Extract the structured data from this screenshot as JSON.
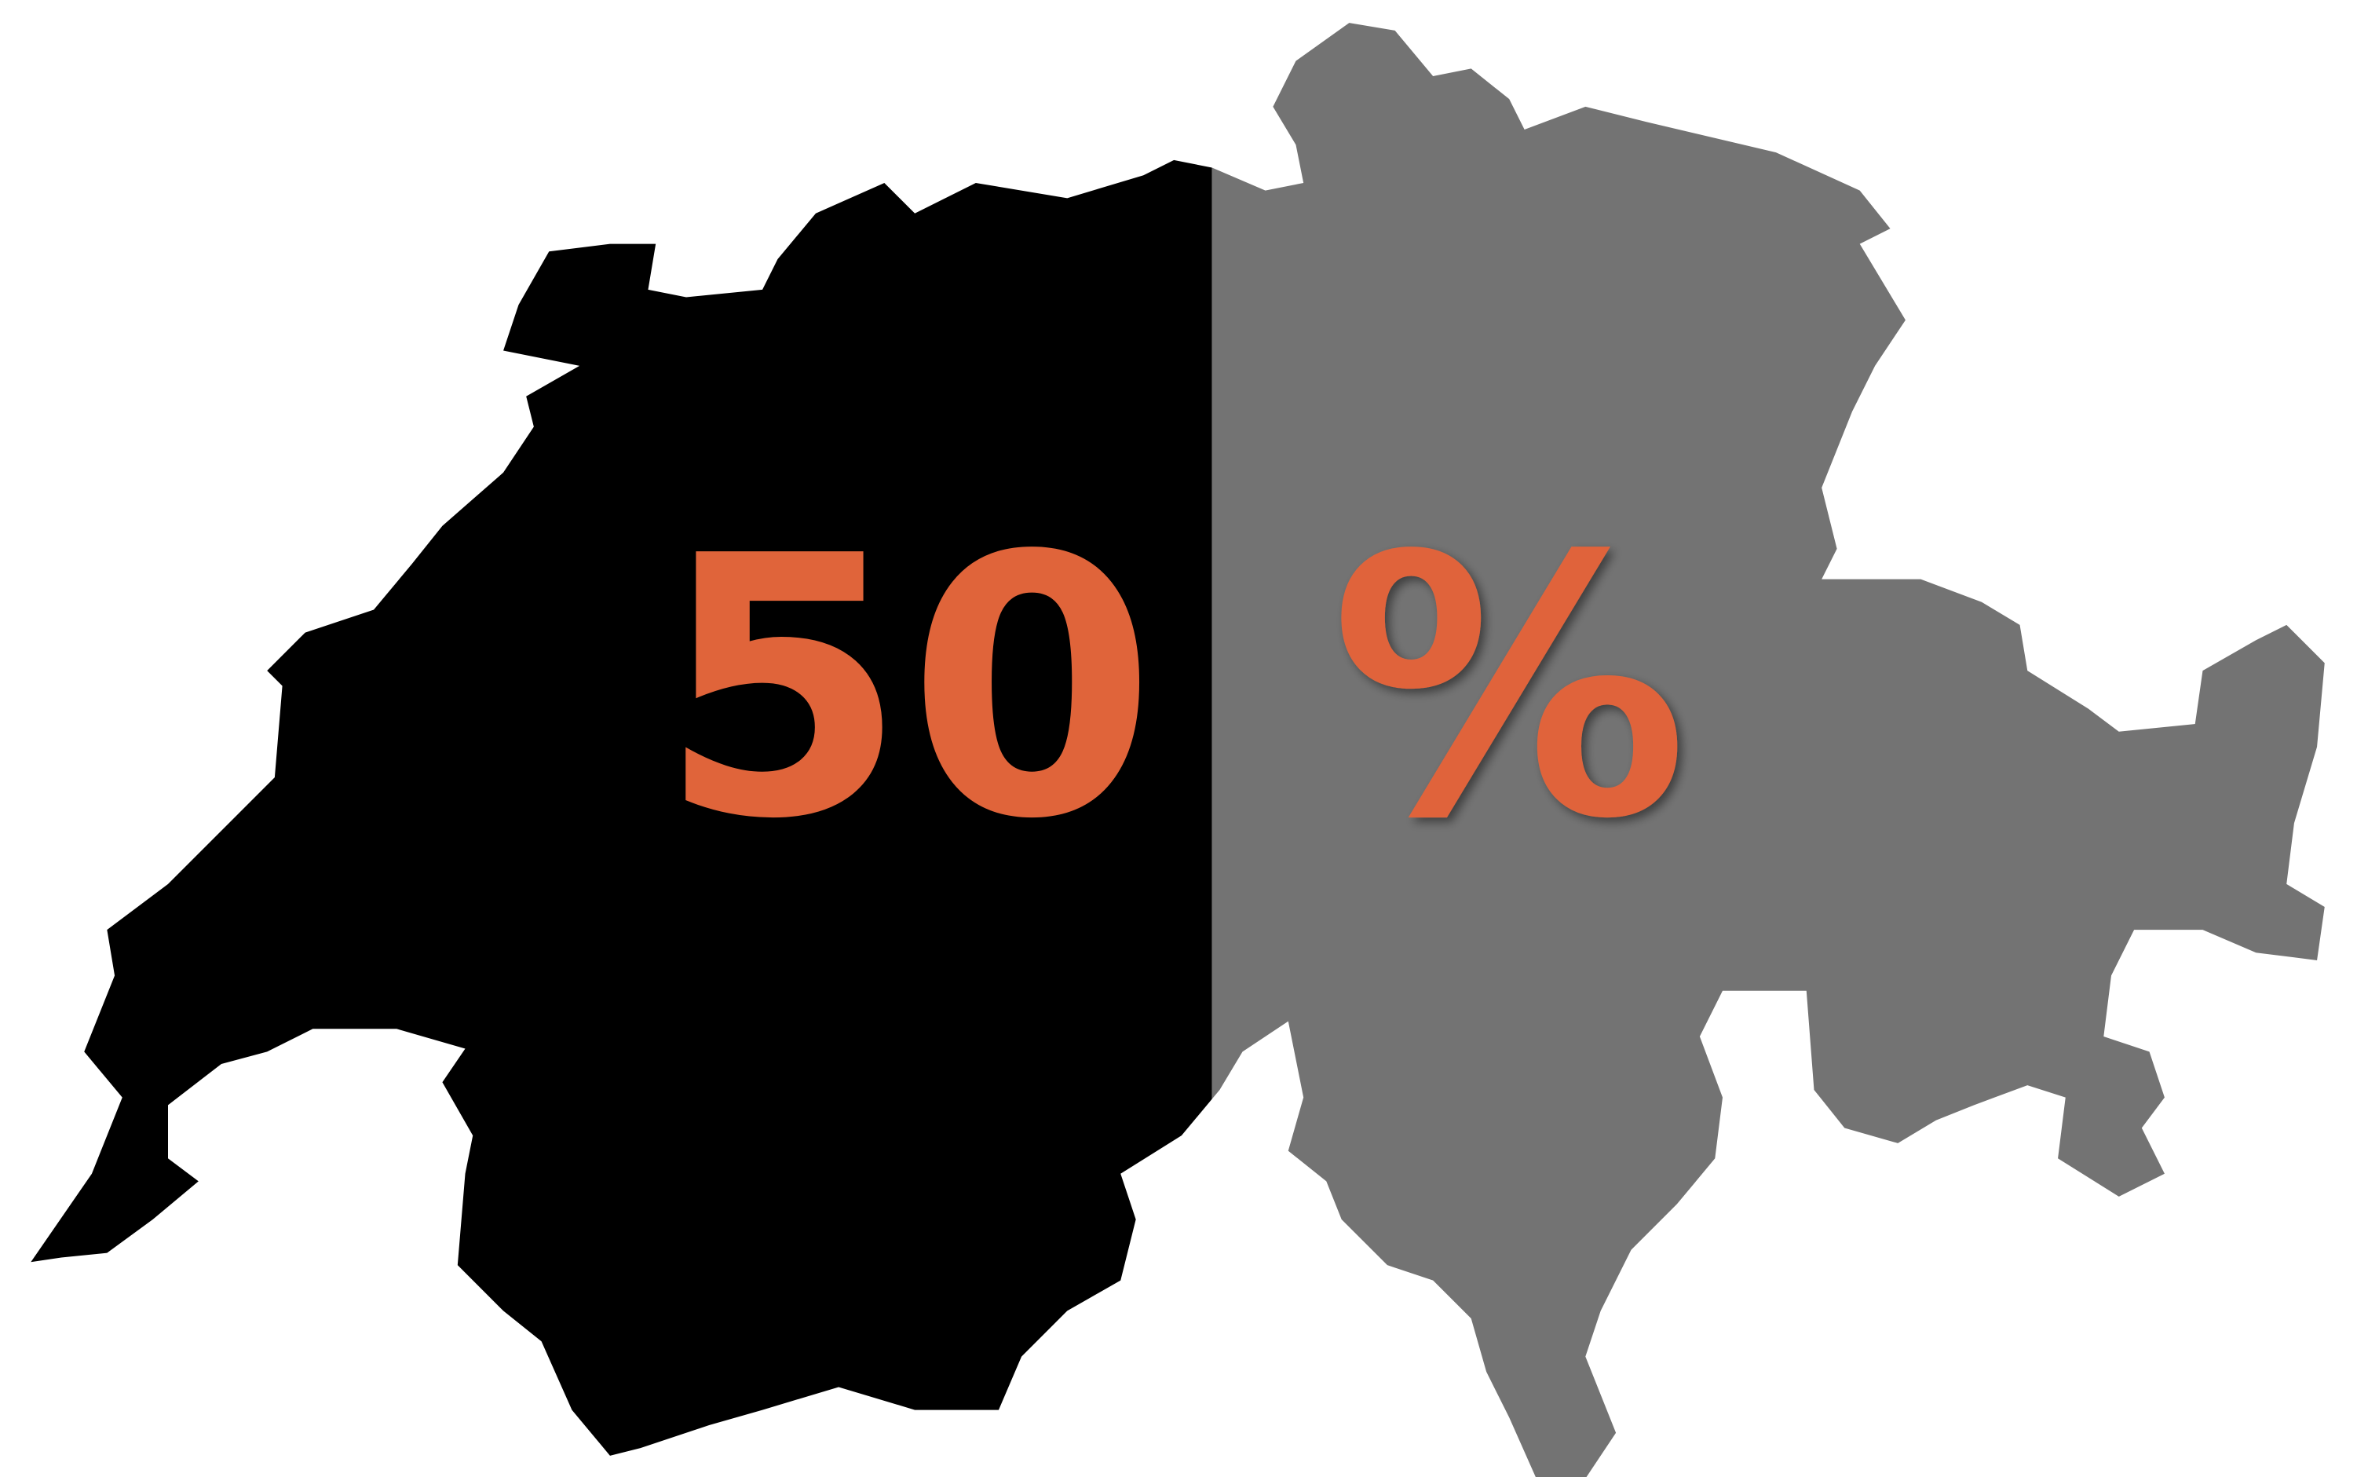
{
  "label": {
    "number": "50",
    "symbol": "%"
  }
}
